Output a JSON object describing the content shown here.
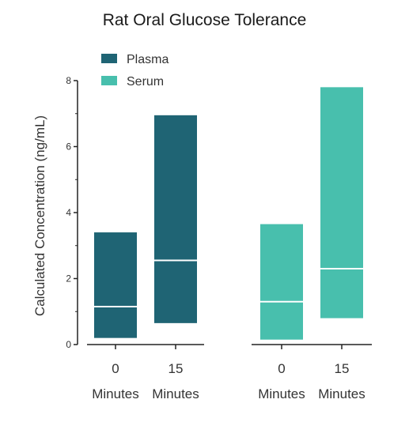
{
  "chart_data": {
    "type": "floating-bar",
    "title": "Rat Oral Glucose Tolerance",
    "ylabel": "Calculated Concentration (ng/mL)",
    "xlabel": "",
    "ylim": [
      0,
      8
    ],
    "yticks": [
      "0",
      "2",
      "4",
      "6",
      "8"
    ],
    "grid": false,
    "legend_position": "top-left",
    "series": [
      {
        "name": "Plasma",
        "color": "#1f6474",
        "groups": [
          {
            "label_top": "0",
            "label_bottom": "Minutes",
            "min": 0.2,
            "max": 3.4,
            "median": 1.15
          },
          {
            "label_top": "15",
            "label_bottom": "Minutes",
            "min": 0.65,
            "max": 6.95,
            "median": 2.55
          }
        ]
      },
      {
        "name": "Serum",
        "color": "#48bfad",
        "groups": [
          {
            "label_top": "0",
            "label_bottom": "Minutes",
            "min": 0.15,
            "max": 3.65,
            "median": 1.3
          },
          {
            "label_top": "15",
            "label_bottom": "Minutes",
            "min": 0.8,
            "max": 7.8,
            "median": 2.3
          }
        ]
      }
    ]
  }
}
